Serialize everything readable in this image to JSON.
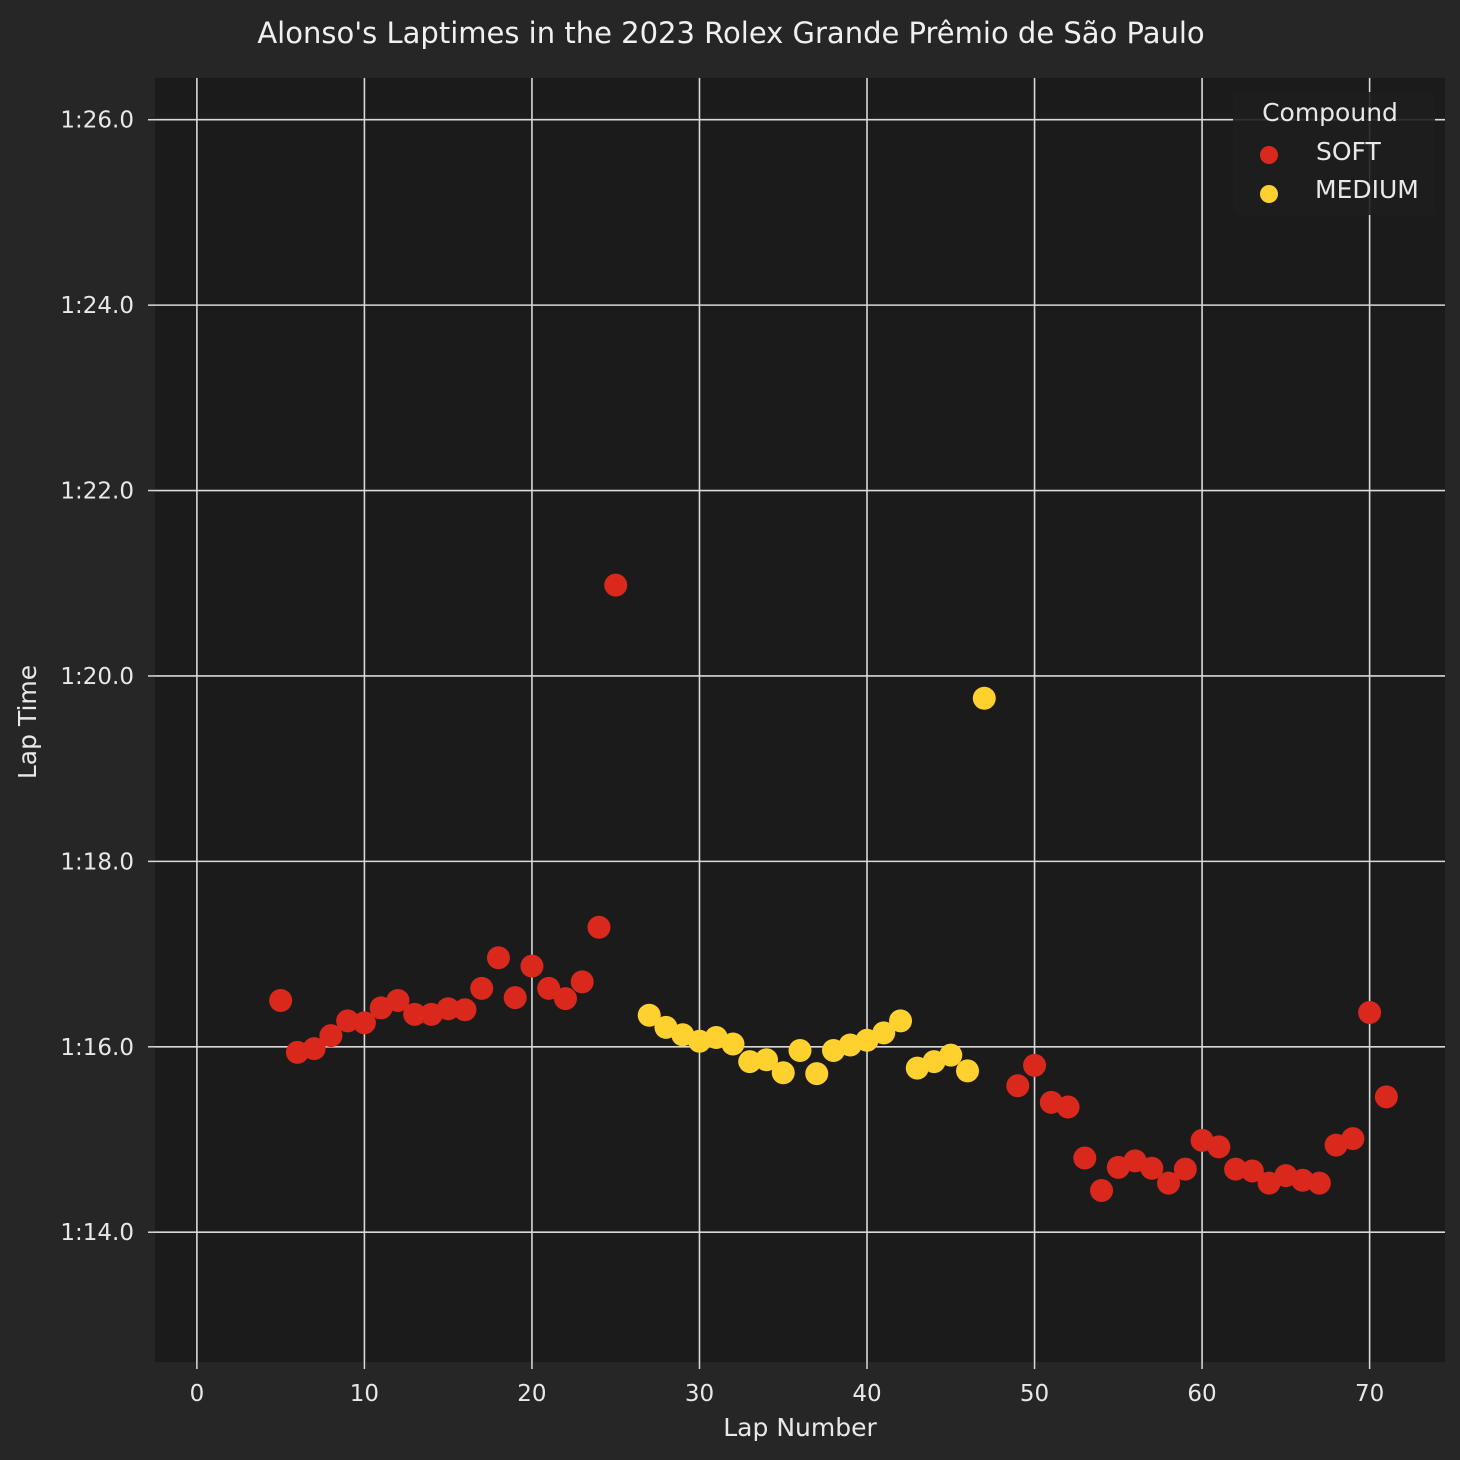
{
  "chart_data": {
    "type": "scatter",
    "title": "Alonso's Laptimes in the 2023 Rolex Grande Prêmio de São Paulo",
    "xlabel": "Lap Number",
    "ylabel": "Lap Time",
    "xlim": [
      -2.5,
      74.5
    ],
    "ylim": [
      72.6,
      86.45
    ],
    "grid": true,
    "x_ticks": [
      0,
      10,
      20,
      30,
      40,
      50,
      60,
      70
    ],
    "x_tick_labels": [
      "0",
      "10",
      "20",
      "30",
      "40",
      "50",
      "60",
      "70"
    ],
    "y_ticks": [
      74,
      76,
      78,
      80,
      82,
      84,
      86
    ],
    "y_tick_labels": [
      "1:14.0",
      "1:16.0",
      "1:18.0",
      "1:20.0",
      "1:22.0",
      "1:24.0",
      "1:26.0"
    ],
    "legend": {
      "title": "Compound",
      "placement": "top-right"
    },
    "series": [
      {
        "name": "SOFT",
        "color": "#da291c",
        "points": [
          [
            5,
            76.5
          ],
          [
            6,
            75.94
          ],
          [
            7,
            75.98
          ],
          [
            8,
            76.12
          ],
          [
            9,
            76.28
          ],
          [
            10,
            76.26
          ],
          [
            11,
            76.42
          ],
          [
            12,
            76.5
          ],
          [
            13,
            76.35
          ],
          [
            14,
            76.35
          ],
          [
            15,
            76.41
          ],
          [
            16,
            76.4
          ],
          [
            17,
            76.63
          ],
          [
            18,
            76.96
          ],
          [
            19,
            76.53
          ],
          [
            20,
            76.87
          ],
          [
            21,
            76.63
          ],
          [
            22,
            76.52
          ],
          [
            23,
            76.7
          ],
          [
            24,
            77.29
          ],
          [
            25,
            80.98
          ],
          [
            49,
            75.58
          ],
          [
            50,
            75.8
          ],
          [
            51,
            75.4
          ],
          [
            52,
            75.35
          ],
          [
            53,
            74.8
          ],
          [
            54,
            74.45
          ],
          [
            55,
            74.7
          ],
          [
            56,
            74.77
          ],
          [
            57,
            74.69
          ],
          [
            58,
            74.53
          ],
          [
            59,
            74.68
          ],
          [
            60,
            74.99
          ],
          [
            61,
            74.92
          ],
          [
            62,
            74.68
          ],
          [
            63,
            74.66
          ],
          [
            64,
            74.53
          ],
          [
            65,
            74.61
          ],
          [
            66,
            74.56
          ],
          [
            67,
            74.53
          ],
          [
            68,
            74.94
          ],
          [
            69,
            75.01
          ],
          [
            70,
            76.37
          ],
          [
            71,
            75.46
          ]
        ]
      },
      {
        "name": "MEDIUM",
        "color": "#ffd12e",
        "points": [
          [
            27,
            76.34
          ],
          [
            28,
            76.21
          ],
          [
            29,
            76.13
          ],
          [
            30,
            76.06
          ],
          [
            31,
            76.1
          ],
          [
            32,
            76.03
          ],
          [
            33,
            75.84
          ],
          [
            34,
            75.86
          ],
          [
            35,
            75.72
          ],
          [
            36,
            75.96
          ],
          [
            37,
            75.71
          ],
          [
            38,
            75.96
          ],
          [
            39,
            76.02
          ],
          [
            40,
            76.07
          ],
          [
            41,
            76.15
          ],
          [
            42,
            76.28
          ],
          [
            43,
            75.77
          ],
          [
            44,
            75.84
          ],
          [
            45,
            75.91
          ],
          [
            46,
            75.74
          ],
          [
            47,
            79.76
          ]
        ]
      }
    ]
  }
}
